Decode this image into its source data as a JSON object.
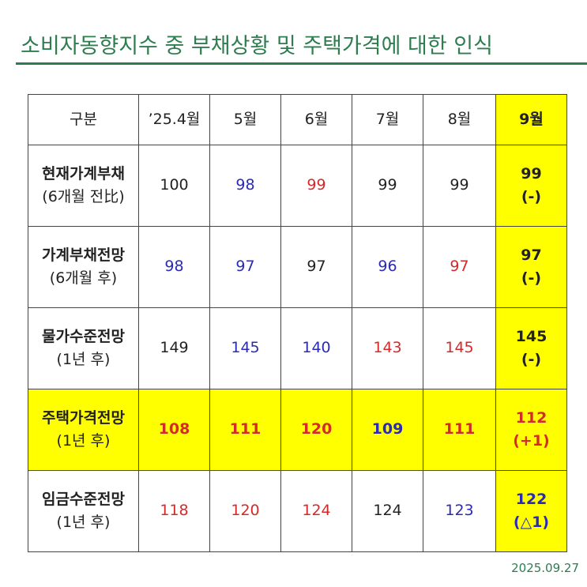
{
  "header": {
    "title": "소비자동향지수 중 부채상황 및 주택가격에 대한 인식"
  },
  "table": {
    "columns": [
      "구분",
      "’25.4월",
      "5월",
      "6월",
      "7월",
      "8월",
      "9월"
    ],
    "rows": [
      {
        "label": "현재가계부채",
        "sublabel": "(6개월 전比)",
        "values": [
          100,
          98,
          99,
          99,
          99
        ],
        "colors": [
          "#222222",
          "#2b2bb5",
          "#d42a2a",
          "#222222",
          "#222222"
        ],
        "latest": 99,
        "change": "(-)",
        "latest_color": "#222222",
        "highlight": false
      },
      {
        "label": "가계부채전망",
        "sublabel": "(6개월 후)",
        "values": [
          98,
          97,
          97,
          96,
          97
        ],
        "colors": [
          "#2b2bb5",
          "#2b2bb5",
          "#222222",
          "#2b2bb5",
          "#d42a2a"
        ],
        "latest": 97,
        "change": "(-)",
        "latest_color": "#222222",
        "highlight": false
      },
      {
        "label": "물가수준전망",
        "sublabel": "(1년 후)",
        "values": [
          149,
          145,
          140,
          143,
          145
        ],
        "colors": [
          "#222222",
          "#2b2bb5",
          "#2b2bb5",
          "#d42a2a",
          "#d42a2a"
        ],
        "latest": 145,
        "change": "(-)",
        "latest_color": "#222222",
        "highlight": false
      },
      {
        "label": "주택가격전망",
        "sublabel": "(1년 후)",
        "values": [
          108,
          111,
          120,
          109,
          111
        ],
        "colors": [
          "#d42a2a",
          "#d42a2a",
          "#d42a2a",
          "#2b2bb5",
          "#d42a2a"
        ],
        "latest": 112,
        "change": "(+1)",
        "latest_color": "#d42a2a",
        "highlight": true
      },
      {
        "label": "임금수준전망",
        "sublabel": "(1년 후)",
        "values": [
          118,
          120,
          124,
          124,
          123
        ],
        "colors": [
          "#d42a2a",
          "#d42a2a",
          "#d42a2a",
          "#222222",
          "#2b2bb5"
        ],
        "latest": 122,
        "change": "(△1)",
        "latest_color": "#2b2bb5",
        "highlight": false
      }
    ]
  },
  "footer": {
    "date": "2025.09.27"
  }
}
